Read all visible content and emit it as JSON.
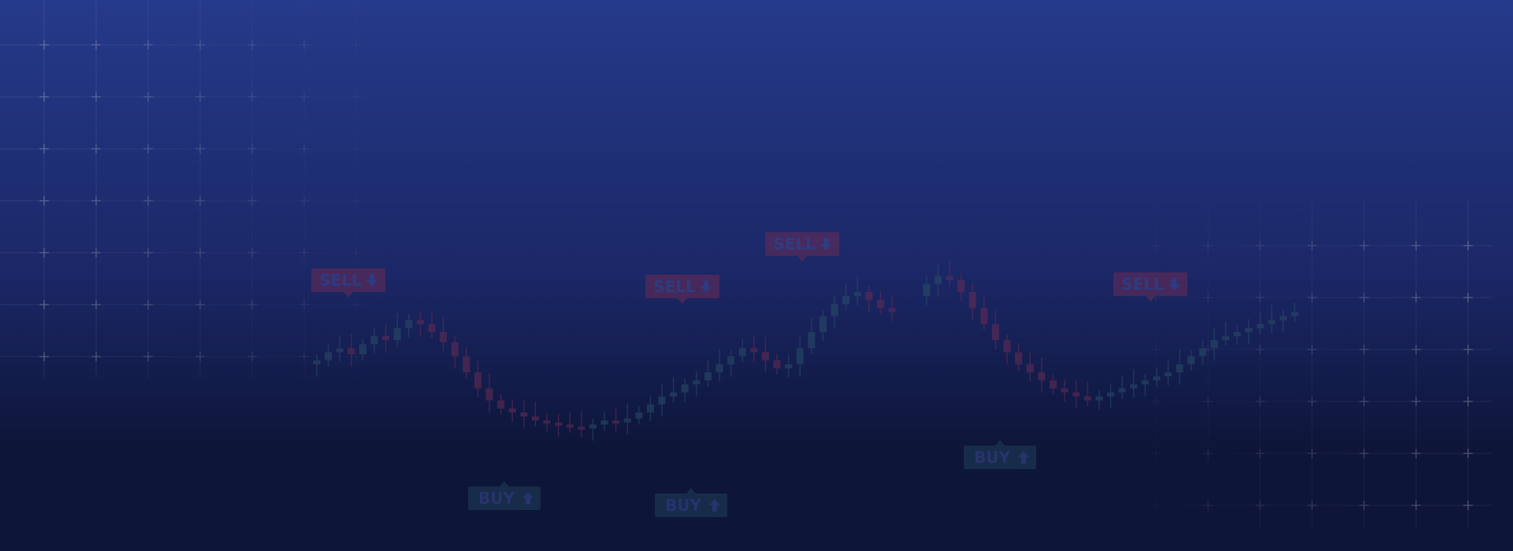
{
  "colors": {
    "bg_top": "#253a8a",
    "bg_mid": "#1b2766",
    "bg_bottom": "#0d1538",
    "candle_up": "#2b4f6a",
    "candle_down": "#6b2c55",
    "sell_badge": "#6b2c55",
    "buy_badge": "#1e3f58",
    "grid_line": "#ffffff",
    "label_text": "#3d4d9a"
  },
  "signals": [
    {
      "label": "SELL",
      "direction": "down"
    },
    {
      "label": "SELL",
      "direction": "down"
    },
    {
      "label": "SELL",
      "direction": "down"
    },
    {
      "label": "SELL",
      "direction": "down"
    },
    {
      "label": "BUY",
      "direction": "up"
    },
    {
      "label": "BUY",
      "direction": "up"
    },
    {
      "label": "BUY",
      "direction": "up"
    }
  ],
  "candle_closes": [
    46,
    50,
    52,
    49,
    54,
    58,
    56,
    62,
    66,
    64,
    60,
    55,
    48,
    40,
    32,
    26,
    22,
    20,
    18,
    16,
    15,
    14,
    13,
    12,
    14,
    16,
    15,
    17,
    20,
    24,
    28,
    30,
    34,
    36,
    40,
    44,
    48,
    52,
    50,
    46,
    42,
    44,
    52,
    60,
    68,
    74,
    78,
    80,
    76,
    72,
    70,
    74,
    78,
    84,
    88,
    86,
    80,
    72,
    64,
    56,
    50,
    44,
    40,
    36,
    32,
    30,
    28,
    26,
    28,
    30,
    32,
    34,
    36,
    38,
    40,
    44,
    48,
    52,
    56,
    58,
    60,
    62,
    64,
    66,
    68,
    70
  ]
}
